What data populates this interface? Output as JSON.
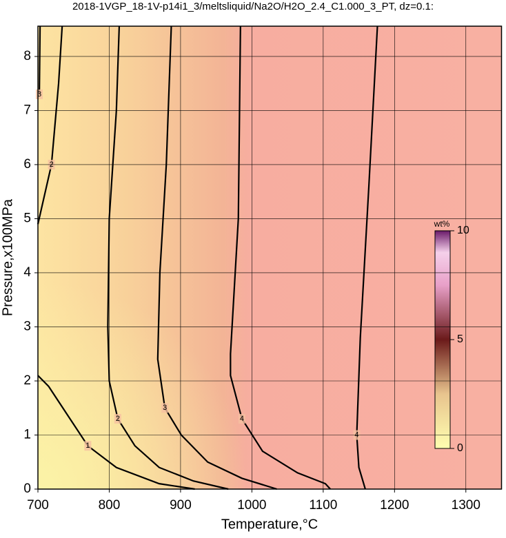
{
  "chart_data": {
    "type": "contour",
    "title": "2018-1VGP_18-1V-p14i1_3/meltsliquid/Na2O/H2O_2.4_C1.000_3_PT, dz=0.1:",
    "x_label": "Temperature,°C",
    "y_label": "Pressure,x100MPa",
    "xlim": [
      700,
      1350
    ],
    "ylim": [
      0,
      8.56
    ],
    "xticks": [
      700,
      800,
      900,
      1000,
      1100,
      1200,
      1300
    ],
    "yticks": [
      0,
      1,
      2,
      3,
      4,
      5,
      6,
      7,
      8
    ],
    "grid": true,
    "contours": [
      {
        "level": 1,
        "x": [
          700,
          715,
          740,
          770,
          810,
          870,
          920
        ],
        "y": [
          2.1,
          1.9,
          1.4,
          0.8,
          0.4,
          0.1,
          0
        ]
      },
      {
        "level": 2,
        "x": [
          734,
          729,
          719,
          700
        ],
        "y": [
          8.56,
          7.5,
          6,
          4.9
        ]
      },
      {
        "level": 2,
        "x": [
          814,
          810,
          800,
          798,
          800,
          812,
          836,
          870,
          918,
          967
        ],
        "y": [
          8.56,
          7,
          5,
          3,
          2,
          1.3,
          0.8,
          0.4,
          0.15,
          0
        ]
      },
      {
        "level": 3,
        "x": [
          703,
          702
        ],
        "y": [
          8.56,
          7.3
        ]
      },
      {
        "level": 3,
        "x": [
          887,
          880,
          871,
          868,
          878,
          901,
          938,
          986,
          1035
        ],
        "y": [
          8.56,
          6,
          4,
          2.4,
          1.5,
          1,
          0.5,
          0.2,
          0
        ]
      },
      {
        "level": 4,
        "x": [
          984,
          981,
          970,
          970,
          986,
          1015,
          1064,
          1103,
          1110
        ],
        "y": [
          8.56,
          5,
          2.5,
          2.1,
          1.3,
          0.7,
          0.3,
          0.1,
          0
        ]
      },
      {
        "level": 4,
        "x": [
          1176,
          1164,
          1152,
          1147,
          1150,
          1159
        ],
        "y": [
          8.56,
          5.6,
          2.8,
          1,
          0.4,
          0
        ]
      }
    ],
    "colorbar": {
      "label": "wt%",
      "lim": [
        0,
        10
      ],
      "ticks": [
        0,
        5,
        10
      ]
    }
  }
}
